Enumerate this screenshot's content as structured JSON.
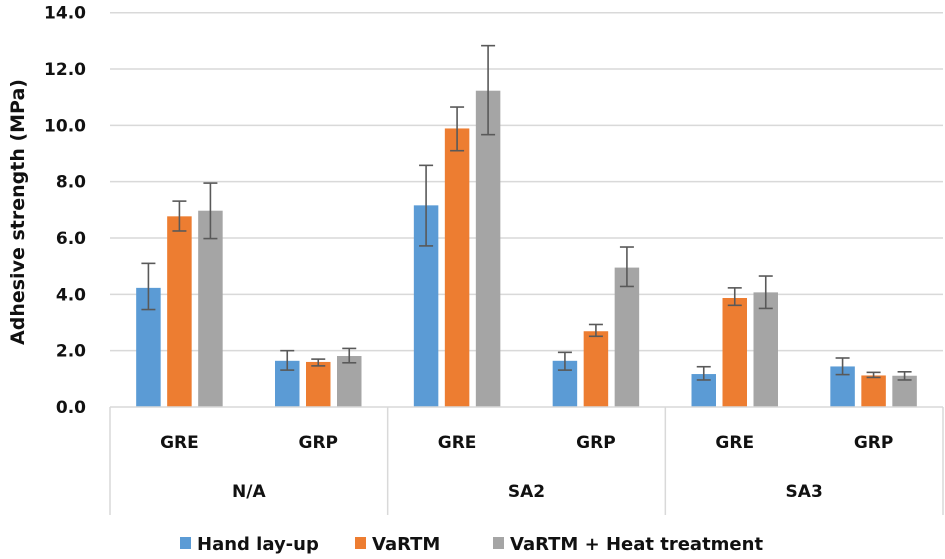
{
  "chart_data": {
    "type": "bar",
    "title": "",
    "xlabel": "",
    "ylabel": "Adhesive strength (MPa)",
    "ylim": [
      0,
      14
    ],
    "yticks": [
      "0.0",
      "2.0",
      "4.0",
      "6.0",
      "8.0",
      "10.0",
      "12.0",
      "14.0"
    ],
    "grid": true,
    "legend_position": "bottom",
    "groups": [
      "N/A",
      "SA2",
      "SA3"
    ],
    "subcategories": [
      "GRE",
      "GRP"
    ],
    "categories": [
      "N/A GRE",
      "N/A GRP",
      "SA2 GRE",
      "SA2 GRP",
      "SA3 GRE",
      "SA3 GRP"
    ],
    "category_labels": [
      "GRE",
      "GRP",
      "GRE",
      "GRP",
      "GRE",
      "GRP"
    ],
    "series": [
      {
        "name": "Hand lay-up",
        "color": "#5B9BD5",
        "values": [
          4.23,
          1.64,
          7.16,
          1.64,
          1.17,
          1.44
        ],
        "error_low": [
          3.46,
          1.31,
          5.72,
          1.31,
          0.96,
          1.15
        ],
        "error_high": [
          5.1,
          2.0,
          8.58,
          1.94,
          1.43,
          1.74
        ]
      },
      {
        "name": "VaRTM",
        "color": "#ED7D31",
        "values": [
          6.77,
          1.6,
          9.89,
          2.69,
          3.87,
          1.12
        ],
        "error_low": [
          6.25,
          1.46,
          9.1,
          2.51,
          3.61,
          1.05
        ],
        "error_high": [
          7.31,
          1.7,
          10.65,
          2.93,
          4.23,
          1.23
        ]
      },
      {
        "name": "VaRTM + Heat treatment",
        "color": "#A5A5A5",
        "values": [
          6.97,
          1.81,
          11.23,
          4.95,
          4.07,
          1.11
        ],
        "error_low": [
          5.98,
          1.57,
          9.67,
          4.28,
          3.5,
          0.96
        ],
        "error_high": [
          7.95,
          2.08,
          12.83,
          5.68,
          4.65,
          1.25
        ]
      }
    ]
  }
}
